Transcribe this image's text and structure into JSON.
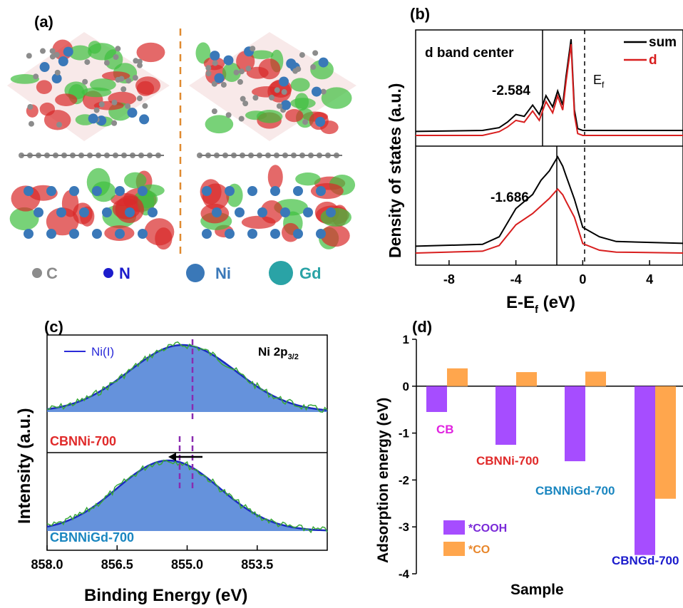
{
  "panel_a": {
    "letter": "(a)",
    "legend": [
      {
        "symbol": "C",
        "label": "C",
        "color": "#8c8c8c"
      },
      {
        "symbol": "N",
        "label": "N",
        "color": "#1c1ccc"
      },
      {
        "symbol": "Ni",
        "label": "Ni",
        "color": "#3a78b8"
      },
      {
        "symbol": "Gd",
        "label": "Gd",
        "color": "#2aa3a6"
      }
    ]
  },
  "panel_b": {
    "letter": "(b)",
    "annotation_top": "d band center",
    "fermi_label": "E",
    "fermi_sub": "f",
    "legend": [
      {
        "name": "sum",
        "color": "#000000"
      },
      {
        "name": "d",
        "color": "#d81e1e"
      }
    ],
    "ylabel": "Density of states (a.u.)",
    "xlabel_main": "E-E",
    "xlabel_sub": "f",
    "xlabel_unit": " (eV)",
    "xticks": [
      "-8",
      "-4",
      "0",
      "4"
    ],
    "top_center": "-2.584",
    "bottom_center": "-1.686"
  },
  "panel_c": {
    "letter": "(c)",
    "legend_label": "Ni(I)",
    "peak_label_main": "Ni 2p",
    "peak_label_sub": "3/2",
    "top_sample": "CBNNi-700",
    "bottom_sample": "CBNNiGd-700",
    "ylabel": "Intensity (a.u.)",
    "xlabel": "Binding Energy (eV)",
    "xticks": [
      "858.0",
      "856.5",
      "855.0",
      "853.5"
    ]
  },
  "chart_data": [
    {
      "type": "line",
      "panel": "(b)",
      "xlabel": "E-Ef (eV)",
      "ylabel": "Density of states (a.u.)",
      "xlim": [
        -10,
        6
      ],
      "series": [
        {
          "name": "sum",
          "subplot": "top",
          "x": [
            -10,
            -6,
            -5,
            -4.5,
            -4,
            -3.5,
            -3,
            -2.6,
            -2.2,
            -1.8,
            -1.5,
            -1.2,
            -1,
            -0.7,
            -0.5,
            -0.3,
            0,
            2,
            6
          ],
          "y": [
            0.02,
            0.03,
            0.06,
            0.12,
            0.2,
            0.18,
            0.3,
            0.2,
            0.4,
            0.28,
            0.45,
            0.3,
            0.6,
            1.0,
            0.25,
            0.05,
            0.03,
            0.03,
            0.03
          ]
        },
        {
          "name": "d",
          "subplot": "top",
          "x": [
            -10,
            -6,
            -5,
            -4.5,
            -4,
            -3.5,
            -3,
            -2.6,
            -2.2,
            -1.8,
            -1.5,
            -1.2,
            -1,
            -0.7,
            -0.5,
            -0.3,
            0,
            2,
            6
          ],
          "y": [
            0.0,
            0.0,
            0.04,
            0.09,
            0.16,
            0.14,
            0.26,
            0.16,
            0.36,
            0.24,
            0.42,
            0.27,
            0.57,
            0.97,
            0.22,
            0.02,
            0.0,
            0.0,
            0.0
          ]
        },
        {
          "name": "sum",
          "subplot": "bottom",
          "x": [
            -10,
            -6,
            -5,
            -4,
            -3,
            -2.5,
            -2,
            -1.5,
            -1.2,
            -1,
            -0.5,
            0,
            1,
            2,
            6
          ],
          "y": [
            0.05,
            0.07,
            0.15,
            0.45,
            0.6,
            0.75,
            0.85,
            1.0,
            0.9,
            0.8,
            0.55,
            0.25,
            0.15,
            0.1,
            0.08
          ]
        },
        {
          "name": "d",
          "subplot": "bottom",
          "x": [
            -10,
            -6,
            -5,
            -4,
            -3,
            -2.5,
            -2,
            -1.5,
            -1.2,
            -1,
            -0.5,
            0,
            1,
            2,
            6
          ],
          "y": [
            0.0,
            0.02,
            0.08,
            0.3,
            0.42,
            0.5,
            0.58,
            0.68,
            0.62,
            0.55,
            0.38,
            0.1,
            0.03,
            0.01,
            0.0
          ]
        }
      ],
      "d_band_center": {
        "top": -2.584,
        "bottom": -1.686
      }
    },
    {
      "type": "area",
      "panel": "(c)",
      "xlabel": "Binding Energy (eV)",
      "ylabel": "Intensity (a.u.)",
      "xlim": [
        858.0,
        852.0
      ],
      "xticks": [
        858.0,
        856.5,
        855.0,
        853.5
      ],
      "series": [
        {
          "name": "Ni(I)",
          "subplot": "CBNNi-700",
          "peak": 855.1
        },
        {
          "name": "Ni(I)",
          "subplot": "CBNNiGd-700",
          "peak": 855.4
        }
      ]
    },
    {
      "type": "bar",
      "panel": "(d)",
      "xlabel": "Sample",
      "ylabel": "Adsorption energy (eV)",
      "ylim": [
        -4,
        1
      ],
      "yticks": [
        1,
        0,
        -1,
        -2,
        -3,
        -4
      ],
      "categories": [
        "CB",
        "CBNNi-700",
        "CBNNiGd-700",
        "CBNGd-700"
      ],
      "category_colors": [
        "#e023e0",
        "#e02a2a",
        "#1a86c0",
        "#1a1acc"
      ],
      "series": [
        {
          "name": "*COOH",
          "color": "#a64dff",
          "values": [
            -0.55,
            -1.25,
            -1.6,
            -3.6
          ]
        },
        {
          "name": "*CO",
          "color": "#ffa64d",
          "values": [
            0.38,
            0.3,
            0.31,
            -2.4
          ]
        }
      ]
    }
  ],
  "panel_d": {
    "letter": "(d)",
    "ylabel": "Adsorption energy (eV)",
    "xlabel": "Sample",
    "yticks": [
      "1",
      "0",
      "-1",
      "-2",
      "-3",
      "-4"
    ]
  }
}
